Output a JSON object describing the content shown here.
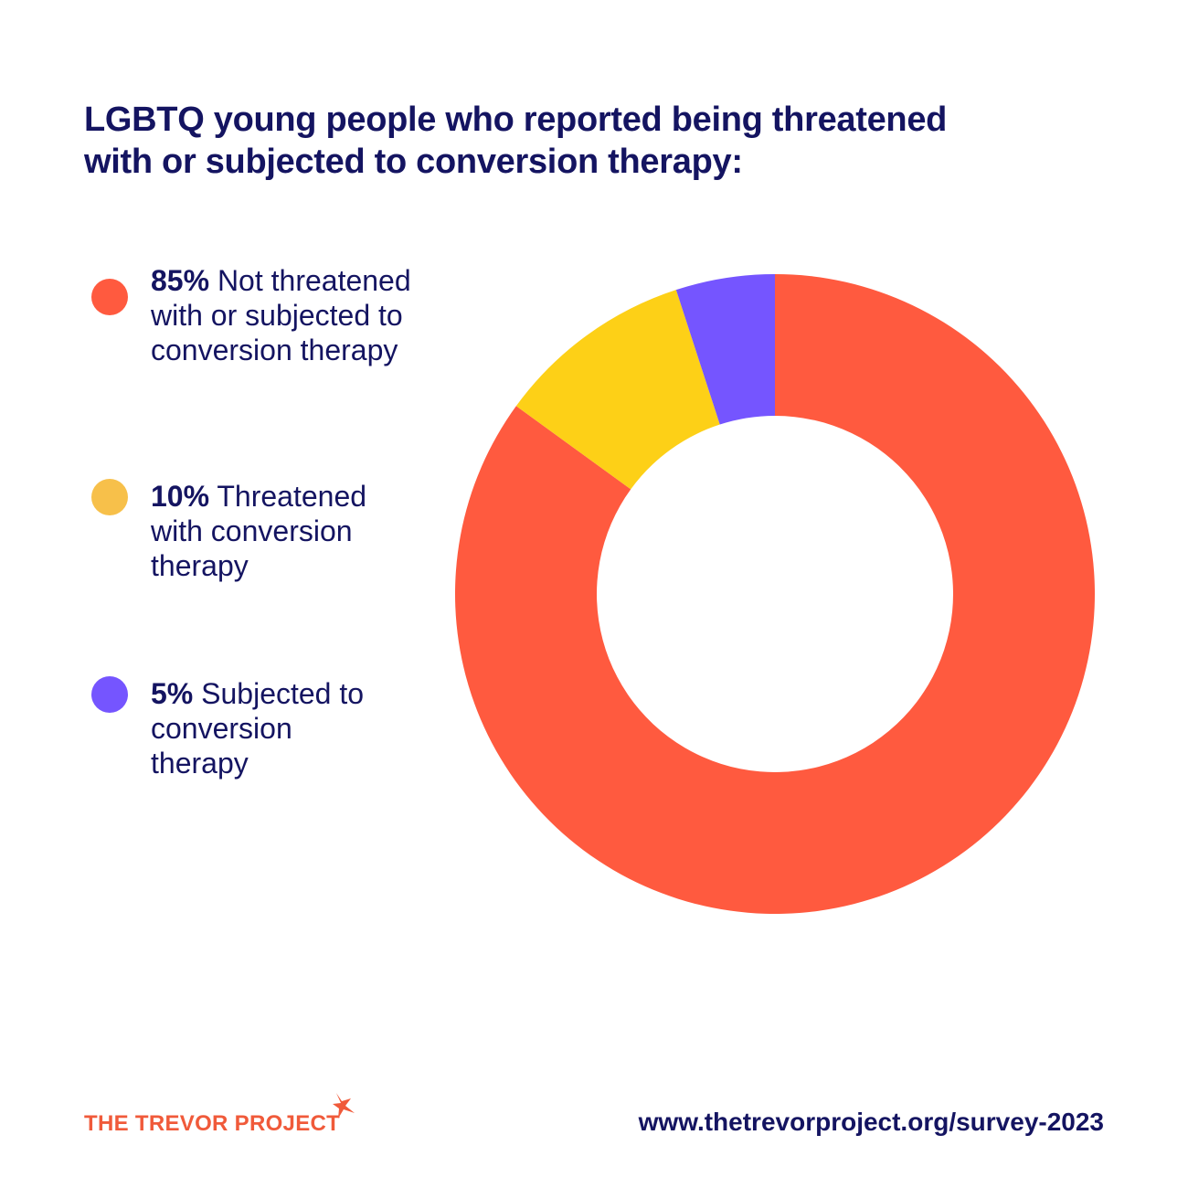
{
  "title_lines": [
    "LGBTQ young people who reported being threatened",
    "with or subjected to conversion therapy:"
  ],
  "legend": [
    {
      "pct": "85%",
      "lines": [
        "Not threatened",
        "with or subjected to",
        "conversion therapy"
      ],
      "color": "#ff5a3f"
    },
    {
      "pct": "10%",
      "lines": [
        "Threatened",
        "with conversion",
        "therapy"
      ],
      "color": "#f7c04a"
    },
    {
      "pct": "5%",
      "lines": [
        "Subjected to",
        "conversion",
        "therapy"
      ],
      "color": "#7555ff"
    }
  ],
  "chart_data": {
    "type": "pie",
    "donut": true,
    "categories": [
      "Not threatened with or subjected to conversion therapy",
      "Threatened with conversion therapy",
      "Subjected to conversion therapy"
    ],
    "values": [
      85,
      10,
      5
    ],
    "colors": [
      "#ff5a3f",
      "#fdd017",
      "#7555ff"
    ]
  },
  "footer": {
    "logo_text": "THE TREVOR PROJECT",
    "url": "www.thetrevorproject.org/survey-2023"
  },
  "colors": {
    "text": "#141461",
    "brand": "#f05a3a"
  }
}
